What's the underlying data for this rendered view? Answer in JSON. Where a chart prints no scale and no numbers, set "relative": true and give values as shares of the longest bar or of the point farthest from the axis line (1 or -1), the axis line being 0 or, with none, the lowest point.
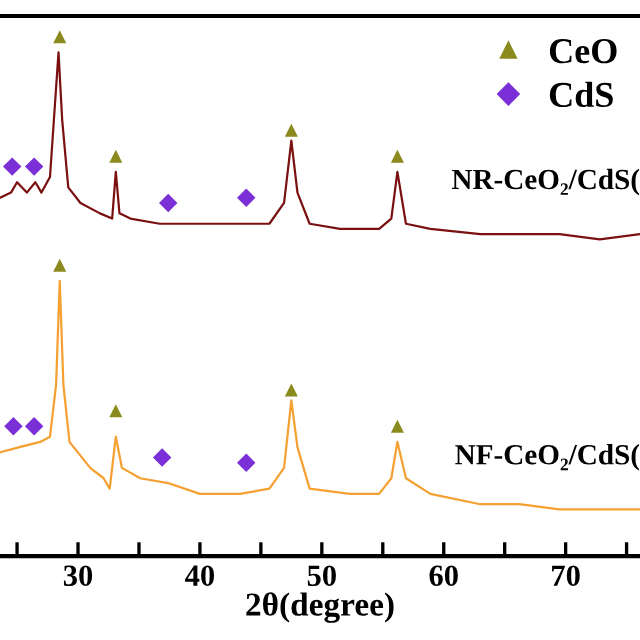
{
  "chart_data": {
    "type": "line",
    "relative": true,
    "xlabel": "2θ(degree)",
    "xlim": [
      23.6,
      76.1
    ],
    "xticks": [
      {
        "value": 25,
        "label": null
      },
      30,
      {
        "value": 35,
        "label": null
      },
      40,
      {
        "value": 45,
        "label": null
      },
      50,
      {
        "value": 55,
        "label": null
      },
      60,
      {
        "value": 65,
        "label": null
      },
      70,
      {
        "value": 75,
        "label": null
      }
    ],
    "tick_labels": "x",
    "grid": false,
    "legend": "top right",
    "series": [
      {
        "name": "NR-CeO₂/CdS(",
        "color": "#7a1010",
        "x": [
          23.6,
          24.5,
          25.0,
          25.8,
          26.5,
          27.0,
          27.7,
          28.4,
          28.7,
          29.2,
          30.2,
          31.8,
          32.8,
          33.1,
          33.4,
          34.3,
          36.7,
          40.0,
          43.3,
          45.7,
          46.9,
          47.5,
          48.0,
          49.0,
          51.5,
          54.7,
          55.7,
          56.2,
          56.9,
          58.9,
          63.0,
          66.2,
          69.5,
          72.8,
          76.1
        ],
        "values": [
          0.69,
          0.7,
          0.72,
          0.7,
          0.72,
          0.7,
          0.73,
          0.97,
          0.84,
          0.71,
          0.68,
          0.66,
          0.65,
          0.74,
          0.66,
          0.65,
          0.64,
          0.64,
          0.64,
          0.64,
          0.68,
          0.8,
          0.7,
          0.64,
          0.63,
          0.63,
          0.65,
          0.74,
          0.64,
          0.63,
          0.62,
          0.62,
          0.62,
          0.61,
          0.62
        ]
      },
      {
        "name": "NF-CeO₂/CdS(",
        "color": "#f5a030",
        "x": [
          23.6,
          25.2,
          26.9,
          27.7,
          28.2,
          28.5,
          28.8,
          29.3,
          31.0,
          32.1,
          32.6,
          33.1,
          33.6,
          35.1,
          37.5,
          40.0,
          43.3,
          45.7,
          46.9,
          47.5,
          48.0,
          49.0,
          52.3,
          54.7,
          55.7,
          56.2,
          56.9,
          58.9,
          63.0,
          66.2,
          69.5,
          72.8,
          76.1
        ],
        "values": [
          0.2,
          0.21,
          0.22,
          0.23,
          0.33,
          0.53,
          0.33,
          0.22,
          0.17,
          0.15,
          0.13,
          0.23,
          0.17,
          0.15,
          0.14,
          0.12,
          0.12,
          0.13,
          0.17,
          0.3,
          0.21,
          0.13,
          0.12,
          0.12,
          0.15,
          0.22,
          0.15,
          0.12,
          0.1,
          0.1,
          0.09,
          0.09,
          0.09
        ]
      },
      {
        "type": "scatter",
        "name": "CeO",
        "marker": "triangle",
        "color": "#8a8a1e",
        "x": [
          28.5,
          33.1,
          47.5,
          56.2,
          28.5,
          33.1,
          47.5,
          56.2
        ],
        "values": [
          1.0,
          0.77,
          0.82,
          0.77,
          0.56,
          0.28,
          0.32,
          0.25
        ]
      },
      {
        "type": "scatter",
        "name": "CdS",
        "marker": "diamond",
        "color": "#7b2fd6",
        "x": [
          24.6,
          26.4,
          37.4,
          43.8,
          24.7,
          26.4,
          36.9,
          43.8
        ],
        "values": [
          0.75,
          0.75,
          0.68,
          0.69,
          0.25,
          0.25,
          0.19,
          0.18
        ]
      }
    ]
  }
}
